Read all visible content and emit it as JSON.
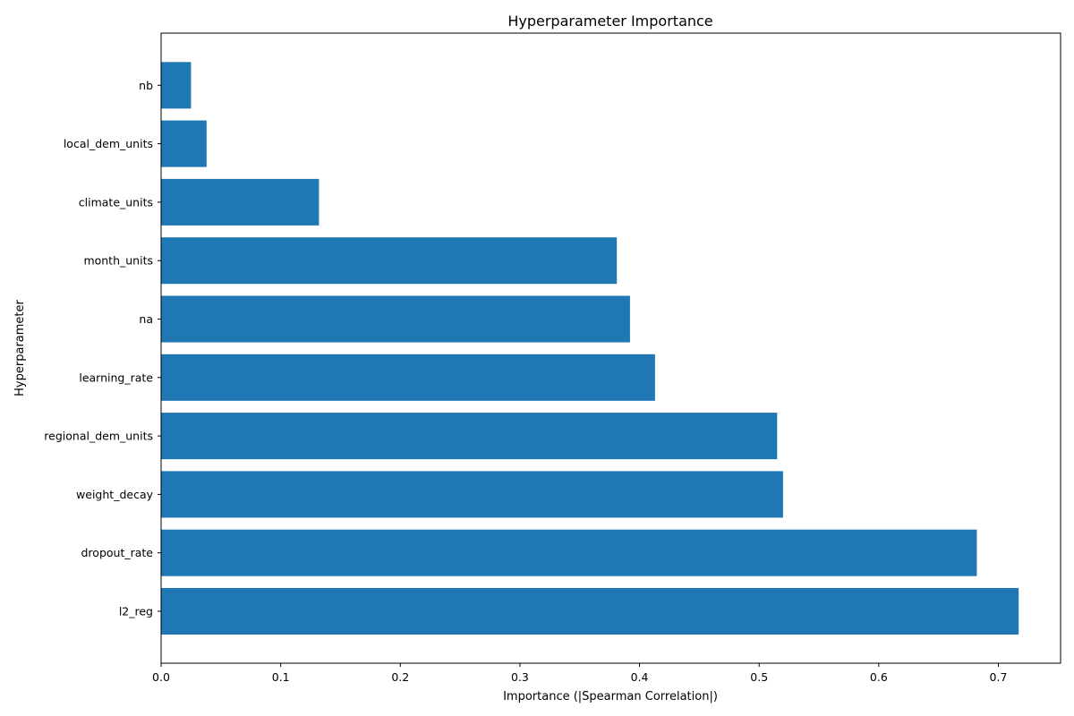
{
  "chart_data": {
    "type": "bar",
    "orientation": "horizontal",
    "title": "Hyperparameter Importance",
    "xlabel": "Importance (|Spearman Correlation|)",
    "ylabel": "Hyperparameter",
    "xlim": [
      0,
      0.752
    ],
    "xticks": [
      "0.0",
      "0.1",
      "0.2",
      "0.3",
      "0.4",
      "0.5",
      "0.6",
      "0.7"
    ],
    "categories": [
      "l2_reg",
      "dropout_rate",
      "weight_decay",
      "regional_dem_units",
      "learning_rate",
      "na",
      "month_units",
      "climate_units",
      "local_dem_units",
      "nb"
    ],
    "values": [
      0.717,
      0.682,
      0.52,
      0.515,
      0.413,
      0.392,
      0.381,
      0.132,
      0.038,
      0.025
    ],
    "bar_color": "#1f77b4",
    "grid": false,
    "legend": "none"
  }
}
